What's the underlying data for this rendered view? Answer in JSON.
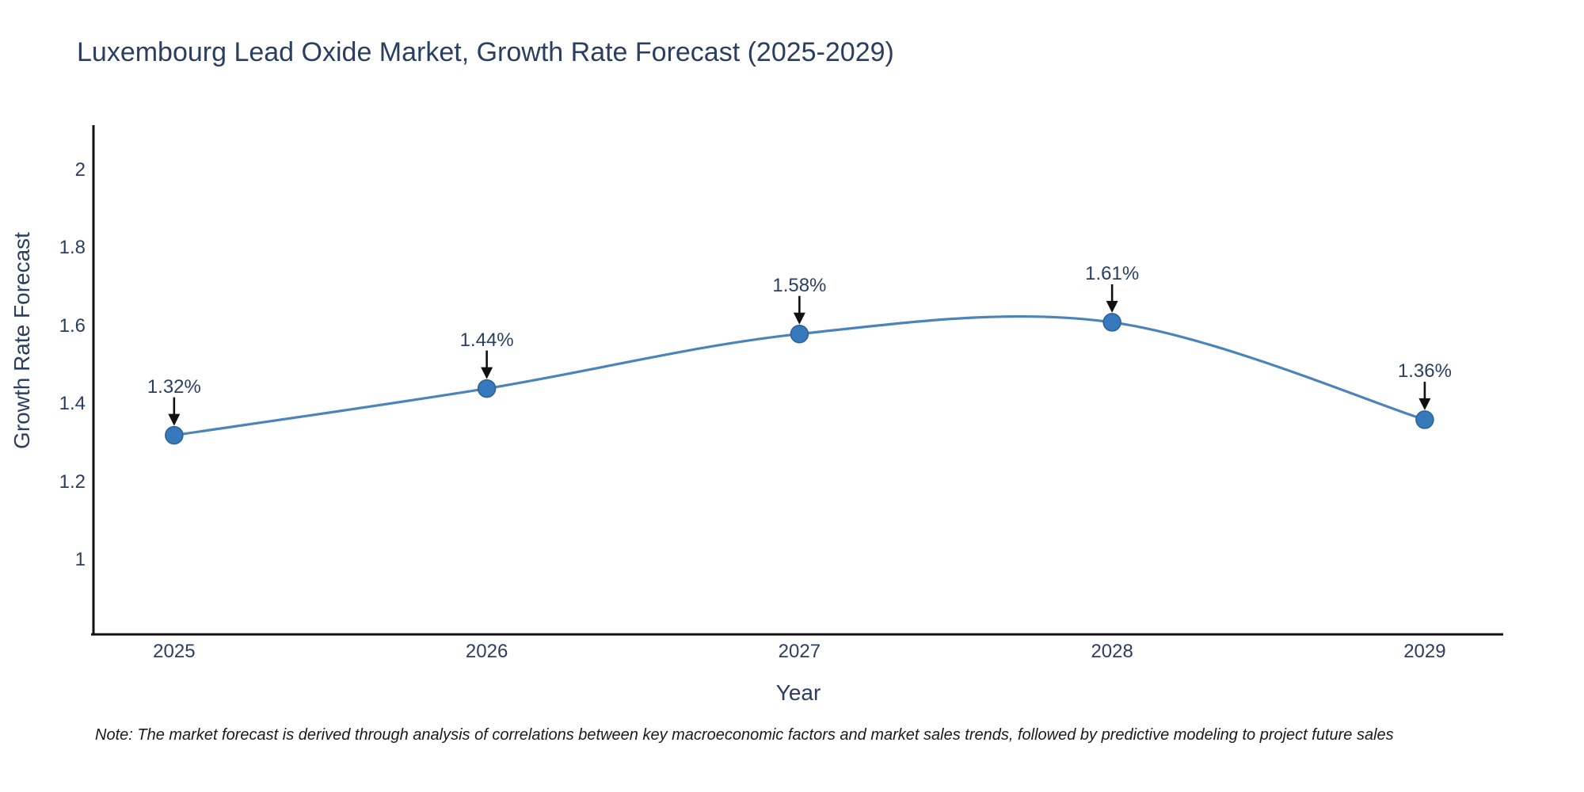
{
  "title": "Luxembourg Lead Oxide Market, Growth Rate Forecast (2025-2029)",
  "note": "Note: The market forecast is derived through analysis of correlations between key macroeconomic factors and market sales trends, followed by predictive modeling to project future sales",
  "chart_data": {
    "type": "line",
    "title": "Luxembourg Lead Oxide Market, Growth Rate Forecast (2025-2029)",
    "xlabel": "Year",
    "ylabel": "Growth Rate Forecast",
    "x": [
      2025,
      2026,
      2027,
      2028,
      2029
    ],
    "values": [
      1.32,
      1.44,
      1.58,
      1.61,
      1.36
    ],
    "point_labels": [
      "1.32%",
      "1.44%",
      "1.58%",
      "1.61%",
      "1.36%"
    ],
    "x_tick_labels": [
      "2025",
      "2026",
      "2027",
      "2028",
      "2029"
    ],
    "y_ticks": [
      2,
      1.8,
      1.6,
      1.4,
      1.2,
      1
    ],
    "y_tick_labels": [
      "2",
      "1.8",
      "1.6",
      "1.4",
      "1.2",
      "1"
    ],
    "xlim": [
      2024.742,
      2029.251
    ],
    "ylim": [
      0.809,
      2.116
    ],
    "line_shape": "spline",
    "grid": false,
    "legend": "none",
    "colors": {
      "line": "#4b84ba",
      "marker": "#3779bd",
      "marker_edge": "#2d608f",
      "axis": "#101010",
      "text": "#2a3f5f",
      "arrow": "#111111",
      "background": "#ffffff"
    }
  }
}
